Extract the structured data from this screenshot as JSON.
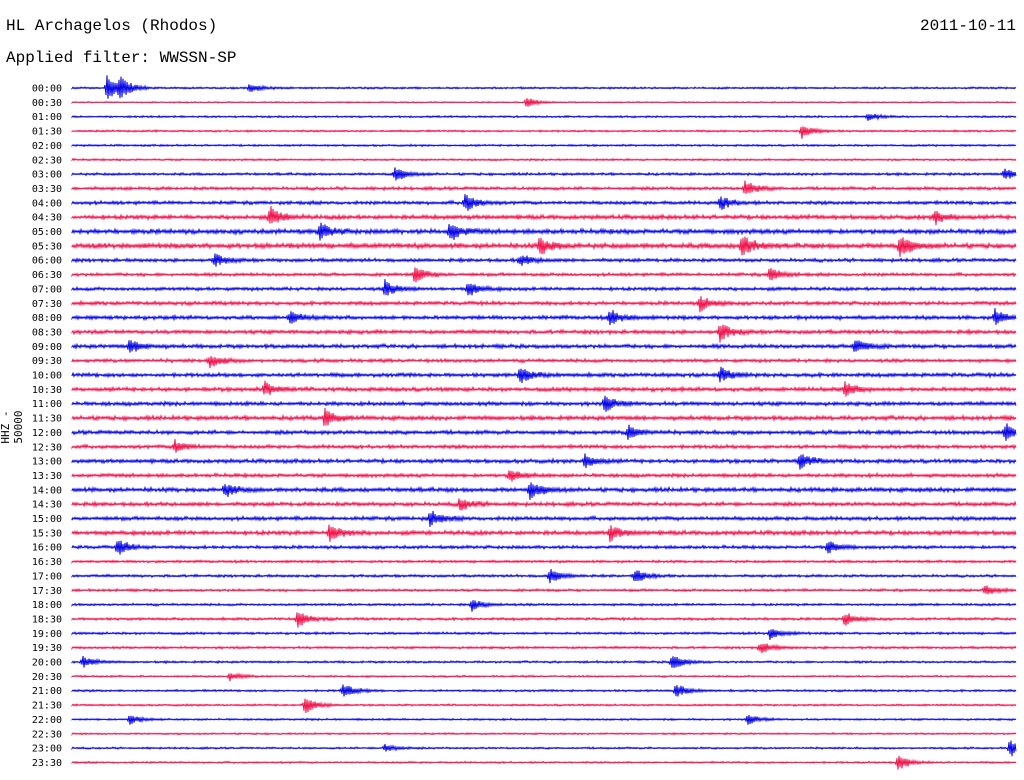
{
  "header": {
    "station": "HL Archagelos (Rhodos)",
    "date": "2011-10-11",
    "filter": "Applied filter: WWSSN-SP"
  },
  "chart_data": {
    "type": "line",
    "title": "HL Archagelos (Rhodos)",
    "ylabel": "HHZ - 50000",
    "row_labels": [
      "00:00",
      "00:30",
      "01:00",
      "01:30",
      "02:00",
      "02:30",
      "03:00",
      "03:30",
      "04:00",
      "04:30",
      "05:00",
      "05:30",
      "06:00",
      "06:30",
      "07:00",
      "07:30",
      "08:00",
      "08:30",
      "09:00",
      "09:30",
      "10:00",
      "10:30",
      "11:00",
      "11:30",
      "12:00",
      "12:30",
      "13:00",
      "13:30",
      "14:00",
      "14:30",
      "15:00",
      "15:30",
      "16:00",
      "16:30",
      "17:00",
      "17:30",
      "18:00",
      "18:30",
      "19:00",
      "19:30",
      "20:00",
      "20:30",
      "21:00",
      "21:30",
      "22:00",
      "22:30",
      "23:00",
      "23:30"
    ],
    "colors": [
      "#0000e6",
      "#f0104a"
    ],
    "noise_level": [
      0.9,
      0.7,
      0.9,
      0.9,
      0.9,
      0.9,
      1.2,
      1.5,
      1.6,
      2.0,
      2.2,
      2.4,
      1.6,
      1.5,
      1.6,
      1.7,
      1.8,
      1.8,
      1.8,
      1.6,
      1.8,
      1.9,
      1.8,
      2.0,
      1.8,
      1.7,
      1.8,
      1.7,
      2.0,
      1.8,
      1.8,
      2.0,
      1.5,
      1.2,
      1.2,
      1.2,
      1.1,
      1.2,
      1.1,
      1.1,
      1.0,
      0.9,
      1.0,
      0.9,
      0.9,
      0.8,
      0.9,
      0.9
    ],
    "events": [
      {
        "row": 0,
        "x": 107,
        "amp": 13
      },
      {
        "row": 0,
        "x": 120,
        "amp": 9
      },
      {
        "row": 0,
        "x": 250,
        "amp": 5
      },
      {
        "row": 1,
        "x": 527,
        "amp": 5
      },
      {
        "row": 2,
        "x": 868,
        "amp": 4
      },
      {
        "row": 3,
        "x": 802,
        "amp": 8
      },
      {
        "row": 6,
        "x": 395,
        "amp": 7
      },
      {
        "row": 6,
        "x": 1005,
        "amp": 6
      },
      {
        "row": 7,
        "x": 745,
        "amp": 8
      },
      {
        "row": 8,
        "x": 465,
        "amp": 9
      },
      {
        "row": 8,
        "x": 720,
        "amp": 7
      },
      {
        "row": 9,
        "x": 270,
        "amp": 10
      },
      {
        "row": 9,
        "x": 935,
        "amp": 7
      },
      {
        "row": 10,
        "x": 320,
        "amp": 8
      },
      {
        "row": 10,
        "x": 450,
        "amp": 10
      },
      {
        "row": 11,
        "x": 540,
        "amp": 9
      },
      {
        "row": 11,
        "x": 742,
        "amp": 12
      },
      {
        "row": 11,
        "x": 900,
        "amp": 11
      },
      {
        "row": 12,
        "x": 215,
        "amp": 6
      },
      {
        "row": 12,
        "x": 520,
        "amp": 6
      },
      {
        "row": 13,
        "x": 415,
        "amp": 8
      },
      {
        "row": 13,
        "x": 770,
        "amp": 7
      },
      {
        "row": 14,
        "x": 385,
        "amp": 8
      },
      {
        "row": 14,
        "x": 468,
        "amp": 7
      },
      {
        "row": 15,
        "x": 700,
        "amp": 8
      },
      {
        "row": 16,
        "x": 290,
        "amp": 6
      },
      {
        "row": 16,
        "x": 610,
        "amp": 8
      },
      {
        "row": 16,
        "x": 995,
        "amp": 8
      },
      {
        "row": 17,
        "x": 720,
        "amp": 9
      },
      {
        "row": 18,
        "x": 130,
        "amp": 7
      },
      {
        "row": 18,
        "x": 855,
        "amp": 9
      },
      {
        "row": 19,
        "x": 210,
        "amp": 7
      },
      {
        "row": 20,
        "x": 520,
        "amp": 9
      },
      {
        "row": 20,
        "x": 720,
        "amp": 7
      },
      {
        "row": 21,
        "x": 265,
        "amp": 7
      },
      {
        "row": 21,
        "x": 845,
        "amp": 7
      },
      {
        "row": 22,
        "x": 605,
        "amp": 8
      },
      {
        "row": 23,
        "x": 325,
        "amp": 9
      },
      {
        "row": 24,
        "x": 628,
        "amp": 7
      },
      {
        "row": 24,
        "x": 1005,
        "amp": 9
      },
      {
        "row": 25,
        "x": 175,
        "amp": 7
      },
      {
        "row": 26,
        "x": 585,
        "amp": 7
      },
      {
        "row": 26,
        "x": 800,
        "amp": 8
      },
      {
        "row": 27,
        "x": 510,
        "amp": 7
      },
      {
        "row": 28,
        "x": 530,
        "amp": 9
      },
      {
        "row": 28,
        "x": 225,
        "amp": 7
      },
      {
        "row": 29,
        "x": 460,
        "amp": 7
      },
      {
        "row": 30,
        "x": 430,
        "amp": 8
      },
      {
        "row": 31,
        "x": 330,
        "amp": 10
      },
      {
        "row": 31,
        "x": 610,
        "amp": 8
      },
      {
        "row": 32,
        "x": 118,
        "amp": 8
      },
      {
        "row": 32,
        "x": 828,
        "amp": 6
      },
      {
        "row": 34,
        "x": 550,
        "amp": 7
      },
      {
        "row": 34,
        "x": 635,
        "amp": 7
      },
      {
        "row": 35,
        "x": 985,
        "amp": 6
      },
      {
        "row": 36,
        "x": 472,
        "amp": 6
      },
      {
        "row": 37,
        "x": 298,
        "amp": 8
      },
      {
        "row": 37,
        "x": 845,
        "amp": 7
      },
      {
        "row": 38,
        "x": 770,
        "amp": 6
      },
      {
        "row": 39,
        "x": 760,
        "amp": 6
      },
      {
        "row": 40,
        "x": 83,
        "amp": 6
      },
      {
        "row": 40,
        "x": 672,
        "amp": 8
      },
      {
        "row": 41,
        "x": 230,
        "amp": 4
      },
      {
        "row": 42,
        "x": 343,
        "amp": 8
      },
      {
        "row": 42,
        "x": 676,
        "amp": 7
      },
      {
        "row": 43,
        "x": 305,
        "amp": 9
      },
      {
        "row": 44,
        "x": 130,
        "amp": 5
      },
      {
        "row": 44,
        "x": 748,
        "amp": 5
      },
      {
        "row": 46,
        "x": 1010,
        "amp": 9
      },
      {
        "row": 46,
        "x": 385,
        "amp": 4
      },
      {
        "row": 47,
        "x": 898,
        "amp": 9
      }
    ]
  }
}
